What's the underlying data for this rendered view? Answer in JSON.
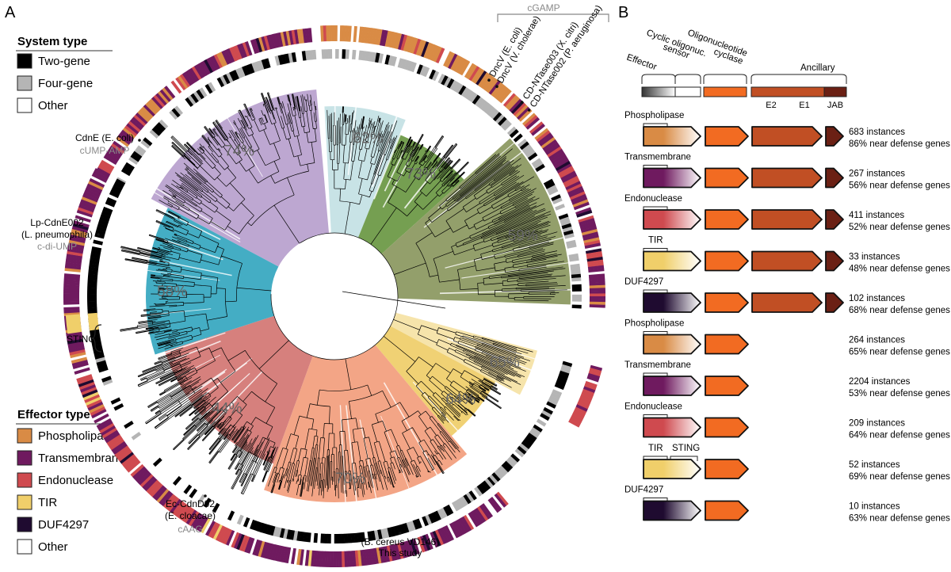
{
  "panel_a": {
    "letter": "A",
    "system_legend": {
      "title": "System type",
      "items": [
        {
          "label": "Two-gene",
          "color": "#000000"
        },
        {
          "label": "Four-gene",
          "color": "#b5b5b5"
        },
        {
          "label": "Other",
          "color": "#ffffff"
        }
      ]
    },
    "effector_legend": {
      "title": "Effector type",
      "items": [
        {
          "label": "Phospholipase",
          "color": "#d98b45"
        },
        {
          "label": "Transmembrane",
          "color": "#6f1a5f"
        },
        {
          "label": "Endonuclease",
          "color": "#cf4a4f"
        },
        {
          "label": "TIR",
          "color": "#f0cf6a"
        },
        {
          "label": "DUF4297",
          "color": "#1f0b30"
        },
        {
          "label": "Other",
          "color": "#ffffff"
        }
      ]
    },
    "clades": [
      {
        "pct": "74%",
        "color": "#b9a2cf"
      },
      {
        "pct": "62%",
        "color": "#c5e2e5"
      },
      {
        "pct": "73%",
        "color": "#6e9a48"
      },
      {
        "pct": "59%",
        "color": "#8d9a63"
      },
      {
        "pct": "65%",
        "color": "#f5e3a6"
      },
      {
        "pct": "64%",
        "color": "#efcf6d"
      },
      {
        "pct": "70%",
        "color": "#f2a07f"
      },
      {
        "pct": "44%",
        "color": "#d47976"
      },
      {
        "pct": "58%",
        "color": "#3aa9c1"
      }
    ],
    "annotations": {
      "cgamp": "cGAMP",
      "dncv_ecoli": "DncV (E. coli)",
      "dncv_vchol": "DncV (V. cholerae)",
      "cdn003": "CD-NTase003 (X. citri)",
      "cdn002": "CD-NTase002 (P. aeruginosa)",
      "cdne": "CdnE (E. coli)",
      "cump": "cUMP-AMP",
      "lp_name": "Lp-CdnE002",
      "lp_org": "(L. pneumophila)",
      "cdiump": "c-di-UMP",
      "sting": "STING",
      "ec_name": "Ec-CdnD02",
      "ec_org": "(E. cloacae)",
      "caag": "cAAG",
      "bcer": "(B. cereus VD146)",
      "this_study": "This study"
    }
  },
  "panel_b": {
    "letter": "B",
    "header": {
      "effector": "Effector",
      "sensor_1": "Cyclic oligonuc.",
      "sensor_2": "sensor",
      "cyclase_1": "Oligonucleotide",
      "cyclase_2": "cyclase",
      "ancillary": "Ancillary",
      "e2": "E2",
      "e1": "E1",
      "jab": "JAB"
    },
    "rows": [
      {
        "label": "Phospholipase",
        "label2": "",
        "color": "#d98b45",
        "instances": "683 instances",
        "near": "86% near defense genes",
        "four_gene": true
      },
      {
        "label": "Transmembrane",
        "label2": "",
        "color": "#6f1a5f",
        "instances": "267 instances",
        "near": "56% near defense genes",
        "four_gene": true
      },
      {
        "label": "Endonuclease",
        "label2": "",
        "color": "#cf4a4f",
        "instances": "411 instances",
        "near": "52% near defense genes",
        "four_gene": true
      },
      {
        "label": "TIR",
        "label2": "",
        "color": "#f0cf6a",
        "instances": "33 instances",
        "near": "48% near defense genes",
        "four_gene": true
      },
      {
        "label": "DUF4297",
        "label2": "",
        "color": "#1f0b30",
        "instances": "102 instances",
        "near": "68% near defense genes",
        "four_gene": true
      },
      {
        "label": "Phospholipase",
        "label2": "",
        "color": "#d98b45",
        "instances": "264 instances",
        "near": "65% near defense genes",
        "four_gene": false
      },
      {
        "label": "Transmembrane",
        "label2": "",
        "color": "#6f1a5f",
        "instances": "2204 instances",
        "near": "53% near defense genes",
        "four_gene": false
      },
      {
        "label": "Endonuclease",
        "label2": "",
        "color": "#cf4a4f",
        "instances": "209 instances",
        "near": "64% near defense genes",
        "four_gene": false
      },
      {
        "label": "TIR",
        "label2": "STING",
        "color": "#f0cf6a",
        "instances": "52 instances",
        "near": "69% near defense genes",
        "four_gene": false
      },
      {
        "label": "DUF4297",
        "label2": "",
        "color": "#1f0b30",
        "instances": "10 instances",
        "near": "63% near defense genes",
        "four_gene": false
      }
    ]
  }
}
